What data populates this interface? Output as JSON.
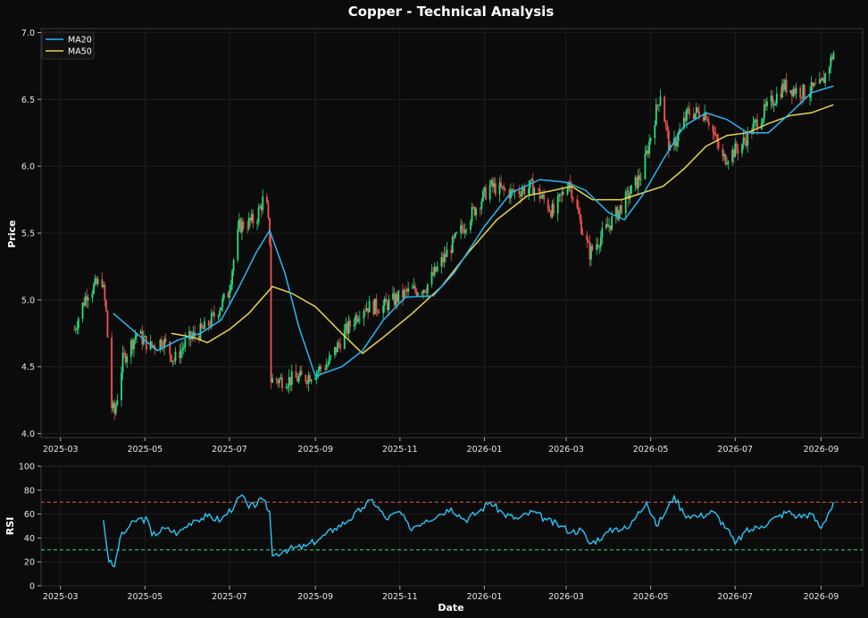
{
  "chart_data": [
    {
      "type": "candlestick",
      "title": "Copper - Technical Analysis",
      "xlabel": "",
      "ylabel": "Price",
      "ylim": [
        3.97,
        7.03
      ],
      "yticks": [
        "4.0",
        "4.5",
        "5.0",
        "5.5",
        "6.0",
        "6.5",
        "7.0"
      ],
      "xticks": [
        "2025-03",
        "2025-05",
        "2025-07",
        "2025-09",
        "2025-11",
        "2026-01",
        "2026-03",
        "2026-05",
        "2026-07",
        "2026-09"
      ],
      "x_range": [
        "2025-02-15",
        "2026-10-01"
      ],
      "grid": true,
      "legend": {
        "position": "top-left",
        "entries": [
          "MA20",
          "MA50"
        ]
      },
      "colors": {
        "up": "#26e07f",
        "down": "#ef5350",
        "ma20": "#29b6f6",
        "ma50": "#e8d54a"
      },
      "close_path": [
        [
          "2025-03-11",
          4.78
        ],
        [
          "2025-03-20",
          5.05
        ],
        [
          "2025-03-31",
          5.15
        ],
        [
          "2025-04-03",
          4.9
        ],
        [
          "2025-04-07",
          4.2
        ],
        [
          "2025-04-09",
          4.15
        ],
        [
          "2025-04-15",
          4.55
        ],
        [
          "2025-04-25",
          4.75
        ],
        [
          "2025-05-05",
          4.65
        ],
        [
          "2025-05-14",
          4.7
        ],
        [
          "2025-05-22",
          4.55
        ],
        [
          "2025-06-01",
          4.7
        ],
        [
          "2025-06-15",
          4.8
        ],
        [
          "2025-06-30",
          5.05
        ],
        [
          "2025-07-08",
          5.55
        ],
        [
          "2025-07-20",
          5.6
        ],
        [
          "2025-07-27",
          5.8
        ],
        [
          "2025-07-30",
          5.45
        ],
        [
          "2025-07-31",
          4.4
        ],
        [
          "2025-08-10",
          4.4
        ],
        [
          "2025-08-25",
          4.42
        ],
        [
          "2025-09-10",
          4.52
        ],
        [
          "2025-09-22",
          4.75
        ],
        [
          "2025-10-05",
          4.95
        ],
        [
          "2025-10-20",
          4.95
        ],
        [
          "2025-11-05",
          5.05
        ],
        [
          "2025-11-20",
          5.1
        ],
        [
          "2025-12-05",
          5.35
        ],
        [
          "2025-12-20",
          5.6
        ],
        [
          "2026-01-05",
          5.85
        ],
        [
          "2026-01-20",
          5.8
        ],
        [
          "2026-02-05",
          5.85
        ],
        [
          "2026-02-20",
          5.65
        ],
        [
          "2026-03-03",
          5.9
        ],
        [
          "2026-03-12",
          5.55
        ],
        [
          "2026-03-18",
          5.35
        ],
        [
          "2026-03-28",
          5.5
        ],
        [
          "2026-04-10",
          5.7
        ],
        [
          "2026-04-25",
          5.95
        ],
        [
          "2026-05-08",
          6.55
        ],
        [
          "2026-05-15",
          6.1
        ],
        [
          "2026-05-28",
          6.4
        ],
        [
          "2026-06-10",
          6.4
        ],
        [
          "2026-06-22",
          6.05
        ],
        [
          "2026-07-05",
          6.15
        ],
        [
          "2026-07-18",
          6.35
        ],
        [
          "2026-08-05",
          6.6
        ],
        [
          "2026-08-20",
          6.55
        ],
        [
          "2026-09-01",
          6.6
        ],
        [
          "2026-09-10",
          6.85
        ]
      ],
      "series": [
        {
          "name": "MA20",
          "points": [
            [
              "2025-04-08",
              4.9
            ],
            [
              "2025-04-25",
              4.75
            ],
            [
              "2025-05-10",
              4.62
            ],
            [
              "2025-05-25",
              4.7
            ],
            [
              "2025-06-10",
              4.75
            ],
            [
              "2025-06-25",
              4.85
            ],
            [
              "2025-07-08",
              5.1
            ],
            [
              "2025-07-20",
              5.35
            ],
            [
              "2025-07-30",
              5.52
            ],
            [
              "2025-08-10",
              5.2
            ],
            [
              "2025-08-20",
              4.8
            ],
            [
              "2025-09-01",
              4.43
            ],
            [
              "2025-09-20",
              4.5
            ],
            [
              "2025-10-05",
              4.62
            ],
            [
              "2025-10-20",
              4.85
            ],
            [
              "2025-11-05",
              5.02
            ],
            [
              "2025-11-25",
              5.03
            ],
            [
              "2025-12-10",
              5.2
            ],
            [
              "2026-01-01",
              5.55
            ],
            [
              "2026-01-20",
              5.8
            ],
            [
              "2026-02-10",
              5.9
            ],
            [
              "2026-03-01",
              5.88
            ],
            [
              "2026-03-15",
              5.82
            ],
            [
              "2026-04-01",
              5.65
            ],
            [
              "2026-04-12",
              5.6
            ],
            [
              "2026-04-25",
              5.78
            ],
            [
              "2026-05-10",
              6.05
            ],
            [
              "2026-05-25",
              6.3
            ],
            [
              "2026-06-10",
              6.4
            ],
            [
              "2026-06-25",
              6.35
            ],
            [
              "2026-07-10",
              6.25
            ],
            [
              "2026-07-25",
              6.25
            ],
            [
              "2026-08-10",
              6.4
            ],
            [
              "2026-08-25",
              6.55
            ],
            [
              "2026-09-10",
              6.6
            ]
          ]
        },
        {
          "name": "MA50",
          "points": [
            [
              "2025-05-20",
              4.75
            ],
            [
              "2025-06-05",
              4.72
            ],
            [
              "2025-06-15",
              4.68
            ],
            [
              "2025-07-01",
              4.78
            ],
            [
              "2025-07-15",
              4.9
            ],
            [
              "2025-08-01",
              5.1
            ],
            [
              "2025-08-15",
              5.05
            ],
            [
              "2025-09-01",
              4.95
            ],
            [
              "2025-09-20",
              4.75
            ],
            [
              "2025-10-05",
              4.6
            ],
            [
              "2025-10-20",
              4.72
            ],
            [
              "2025-11-10",
              4.9
            ],
            [
              "2025-12-01",
              5.1
            ],
            [
              "2025-12-20",
              5.35
            ],
            [
              "2026-01-10",
              5.6
            ],
            [
              "2026-02-01",
              5.78
            ],
            [
              "2026-02-20",
              5.82
            ],
            [
              "2026-03-05",
              5.85
            ],
            [
              "2026-03-20",
              5.75
            ],
            [
              "2026-04-10",
              5.75
            ],
            [
              "2026-04-25",
              5.8
            ],
            [
              "2026-05-10",
              5.85
            ],
            [
              "2026-05-25",
              5.98
            ],
            [
              "2026-06-10",
              6.15
            ],
            [
              "2026-06-25",
              6.23
            ],
            [
              "2026-07-10",
              6.25
            ],
            [
              "2026-07-25",
              6.32
            ],
            [
              "2026-08-10",
              6.38
            ],
            [
              "2026-08-25",
              6.4
            ],
            [
              "2026-09-10",
              6.46
            ]
          ]
        }
      ]
    },
    {
      "type": "line",
      "title": "",
      "xlabel": "Date",
      "ylabel": "RSI",
      "ylim": [
        0,
        100
      ],
      "yticks": [
        "0",
        "20",
        "40",
        "60",
        "80",
        "100"
      ],
      "xticks": [
        "2025-03",
        "2025-05",
        "2025-07",
        "2025-09",
        "2025-11",
        "2026-01",
        "2026-03",
        "2026-05",
        "2026-07",
        "2026-09"
      ],
      "x_range": [
        "2025-02-15",
        "2026-10-01"
      ],
      "reference_lines": [
        {
          "value": 70,
          "color": "#ef5350"
        },
        {
          "value": 30,
          "color": "#26e07f"
        }
      ],
      "colors": {
        "rsi": "#29c5f6"
      },
      "series": [
        {
          "points": [
            [
              "2025-04-01",
              55
            ],
            [
              "2025-04-05",
              20
            ],
            [
              "2025-04-09",
              16
            ],
            [
              "2025-04-13",
              40
            ],
            [
              "2025-04-20",
              50
            ],
            [
              "2025-04-26",
              56
            ],
            [
              "2025-05-03",
              55
            ],
            [
              "2025-05-06",
              42
            ],
            [
              "2025-05-15",
              48
            ],
            [
              "2025-05-25",
              44
            ],
            [
              "2025-06-05",
              55
            ],
            [
              "2025-06-15",
              58
            ],
            [
              "2025-06-25",
              55
            ],
            [
              "2025-07-05",
              68
            ],
            [
              "2025-07-10",
              76
            ],
            [
              "2025-07-15",
              65
            ],
            [
              "2025-07-25",
              72
            ],
            [
              "2025-07-30",
              62
            ],
            [
              "2025-08-01",
              25
            ],
            [
              "2025-08-10",
              30
            ],
            [
              "2025-08-25",
              33
            ],
            [
              "2025-09-05",
              40
            ],
            [
              "2025-09-15",
              48
            ],
            [
              "2025-09-25",
              55
            ],
            [
              "2025-10-05",
              65
            ],
            [
              "2025-10-12",
              72
            ],
            [
              "2025-10-22",
              56
            ],
            [
              "2025-11-01",
              62
            ],
            [
              "2025-11-08",
              48
            ],
            [
              "2025-11-20",
              55
            ],
            [
              "2025-11-30",
              60
            ],
            [
              "2025-12-08",
              65
            ],
            [
              "2025-12-18",
              55
            ],
            [
              "2025-12-28",
              62
            ],
            [
              "2026-01-05",
              70
            ],
            [
              "2026-01-15",
              60
            ],
            [
              "2026-01-25",
              56
            ],
            [
              "2026-02-05",
              62
            ],
            [
              "2026-02-15",
              55
            ],
            [
              "2026-02-25",
              50
            ],
            [
              "2026-03-05",
              45
            ],
            [
              "2026-03-12",
              47
            ],
            [
              "2026-03-18",
              35
            ],
            [
              "2026-03-28",
              42
            ],
            [
              "2026-04-05",
              48
            ],
            [
              "2026-04-15",
              48
            ],
            [
              "2026-04-22",
              62
            ],
            [
              "2026-04-28",
              70
            ],
            [
              "2026-05-05",
              50
            ],
            [
              "2026-05-12",
              62
            ],
            [
              "2026-05-18",
              75
            ],
            [
              "2026-05-25",
              60
            ],
            [
              "2026-06-05",
              58
            ],
            [
              "2026-06-15",
              62
            ],
            [
              "2026-06-25",
              48
            ],
            [
              "2026-07-01",
              35
            ],
            [
              "2026-07-08",
              45
            ],
            [
              "2026-07-20",
              50
            ],
            [
              "2026-08-01",
              58
            ],
            [
              "2026-08-08",
              62
            ],
            [
              "2026-08-15",
              58
            ],
            [
              "2026-08-25",
              60
            ],
            [
              "2026-09-01",
              48
            ],
            [
              "2026-09-06",
              60
            ],
            [
              "2026-09-10",
              70
            ]
          ]
        }
      ]
    }
  ]
}
